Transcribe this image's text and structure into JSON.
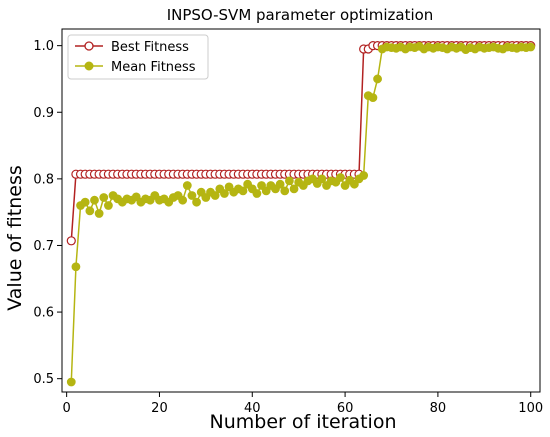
{
  "chart_data": {
    "type": "line",
    "title": "INPSO-SVM parameter optimization",
    "xlabel": "Number of iteration",
    "ylabel": "Value of fitness",
    "xlim": [
      -1,
      102
    ],
    "ylim": [
      0.48,
      1.025
    ],
    "xticks": [
      0,
      20,
      40,
      60,
      80,
      100
    ],
    "yticks": [
      0.5,
      0.6,
      0.7,
      0.8,
      0.9,
      1.0
    ],
    "xtick_labels": [
      "0",
      "20",
      "40",
      "60",
      "80",
      "100"
    ],
    "ytick_labels": [
      "0.5",
      "0.6",
      "0.7",
      "0.8",
      "0.9",
      "1.0"
    ],
    "grid": false,
    "legend_position": "top-left",
    "series": [
      {
        "name": "Best Fitness",
        "color": "#b22222",
        "marker": "open-circle",
        "x": [
          1,
          2,
          3,
          4,
          5,
          6,
          7,
          8,
          9,
          10,
          11,
          12,
          13,
          14,
          15,
          16,
          17,
          18,
          19,
          20,
          21,
          22,
          23,
          24,
          25,
          26,
          27,
          28,
          29,
          30,
          31,
          32,
          33,
          34,
          35,
          36,
          37,
          38,
          39,
          40,
          41,
          42,
          43,
          44,
          45,
          46,
          47,
          48,
          49,
          50,
          51,
          52,
          53,
          54,
          55,
          56,
          57,
          58,
          59,
          60,
          61,
          62,
          63,
          64,
          65,
          66,
          67,
          68,
          69,
          70,
          71,
          72,
          73,
          74,
          75,
          76,
          77,
          78,
          79,
          80,
          81,
          82,
          83,
          84,
          85,
          86,
          87,
          88,
          89,
          90,
          91,
          92,
          93,
          94,
          95,
          96,
          97,
          98,
          99,
          100
        ],
        "values": [
          0.707,
          0.807,
          0.807,
          0.807,
          0.807,
          0.807,
          0.807,
          0.807,
          0.807,
          0.807,
          0.807,
          0.807,
          0.807,
          0.807,
          0.807,
          0.807,
          0.807,
          0.807,
          0.807,
          0.807,
          0.807,
          0.807,
          0.807,
          0.807,
          0.807,
          0.807,
          0.807,
          0.807,
          0.807,
          0.807,
          0.807,
          0.807,
          0.807,
          0.807,
          0.807,
          0.807,
          0.807,
          0.807,
          0.807,
          0.807,
          0.807,
          0.807,
          0.807,
          0.807,
          0.807,
          0.807,
          0.807,
          0.807,
          0.807,
          0.807,
          0.807,
          0.807,
          0.807,
          0.807,
          0.807,
          0.807,
          0.807,
          0.807,
          0.807,
          0.807,
          0.807,
          0.807,
          0.807,
          0.995,
          0.995,
          1.0,
          1.0,
          1.0,
          1.0,
          1.0,
          1.0,
          1.0,
          1.0,
          1.0,
          1.0,
          1.0,
          1.0,
          1.0,
          1.0,
          1.0,
          1.0,
          1.0,
          1.0,
          1.0,
          1.0,
          1.0,
          1.0,
          1.0,
          1.0,
          1.0,
          1.0,
          1.0,
          1.0,
          1.0,
          1.0,
          1.0,
          1.0,
          1.0,
          1.0,
          1.0
        ]
      },
      {
        "name": "Mean Fitness",
        "color": "#b5b512",
        "marker": "filled-circle",
        "x": [
          1,
          2,
          3,
          4,
          5,
          6,
          7,
          8,
          9,
          10,
          11,
          12,
          13,
          14,
          15,
          16,
          17,
          18,
          19,
          20,
          21,
          22,
          23,
          24,
          25,
          26,
          27,
          28,
          29,
          30,
          31,
          32,
          33,
          34,
          35,
          36,
          37,
          38,
          39,
          40,
          41,
          42,
          43,
          44,
          45,
          46,
          47,
          48,
          49,
          50,
          51,
          52,
          53,
          54,
          55,
          56,
          57,
          58,
          59,
          60,
          61,
          62,
          63,
          64,
          65,
          66,
          67,
          68,
          69,
          70,
          71,
          72,
          73,
          74,
          75,
          76,
          77,
          78,
          79,
          80,
          81,
          82,
          83,
          84,
          85,
          86,
          87,
          88,
          89,
          90,
          91,
          92,
          93,
          94,
          95,
          96,
          97,
          98,
          99,
          100
        ],
        "values": [
          0.495,
          0.668,
          0.76,
          0.765,
          0.752,
          0.768,
          0.748,
          0.772,
          0.76,
          0.775,
          0.77,
          0.765,
          0.77,
          0.768,
          0.773,
          0.765,
          0.77,
          0.768,
          0.775,
          0.768,
          0.77,
          0.765,
          0.772,
          0.775,
          0.768,
          0.79,
          0.775,
          0.765,
          0.78,
          0.772,
          0.78,
          0.775,
          0.785,
          0.778,
          0.788,
          0.78,
          0.785,
          0.782,
          0.792,
          0.785,
          0.778,
          0.79,
          0.782,
          0.79,
          0.785,
          0.792,
          0.782,
          0.797,
          0.785,
          0.795,
          0.79,
          0.797,
          0.8,
          0.793,
          0.8,
          0.79,
          0.797,
          0.795,
          0.802,
          0.79,
          0.798,
          0.792,
          0.8,
          0.805,
          0.925,
          0.922,
          0.95,
          0.995,
          0.998,
          0.997,
          0.996,
          0.998,
          0.995,
          0.998,
          0.997,
          0.999,
          0.995,
          0.998,
          0.996,
          0.998,
          0.997,
          0.995,
          0.998,
          0.996,
          0.998,
          0.994,
          0.997,
          0.995,
          0.998,
          0.996,
          0.997,
          0.998,
          0.996,
          0.995,
          0.998,
          0.997,
          0.996,
          0.998,
          0.997,
          0.998
        ]
      }
    ]
  }
}
